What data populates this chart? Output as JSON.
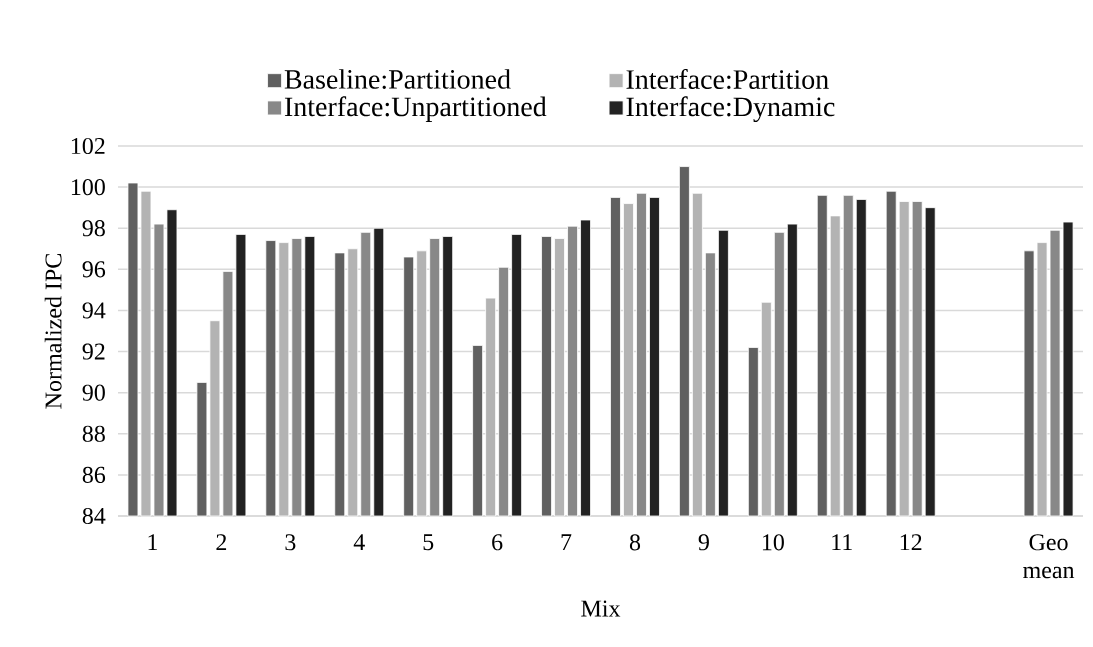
{
  "chart_data": {
    "type": "bar",
    "xlabel": "Mix",
    "ylabel": "Normalized IPC",
    "categories": [
      "1",
      "2",
      "3",
      "4",
      "5",
      "6",
      "7",
      "8",
      "9",
      "10",
      "11",
      "12",
      null,
      "Geo mean"
    ],
    "series": [
      {
        "name": "Baseline:Partitioned",
        "color": "#606060",
        "values": [
          100.2,
          90.5,
          97.4,
          96.8,
          96.6,
          92.3,
          97.6,
          99.5,
          101.0,
          92.2,
          99.6,
          99.8,
          null,
          96.9
        ]
      },
      {
        "name": "Interface:Partition",
        "color": "#b3b3b3",
        "values": [
          99.8,
          93.5,
          97.3,
          97.0,
          96.9,
          94.6,
          97.5,
          99.2,
          99.7,
          94.4,
          98.6,
          99.3,
          null,
          97.3
        ]
      },
      {
        "name": "Interface:Unpartitioned",
        "color": "#888888",
        "values": [
          98.2,
          95.9,
          97.5,
          97.8,
          97.5,
          96.1,
          98.1,
          99.7,
          96.8,
          97.8,
          99.6,
          99.3,
          null,
          97.9
        ]
      },
      {
        "name": "Interface:Dynamic",
        "color": "#222222",
        "values": [
          98.9,
          97.7,
          97.6,
          98.0,
          97.6,
          97.7,
          98.4,
          99.5,
          97.9,
          98.2,
          99.4,
          99.0,
          null,
          98.3
        ]
      }
    ],
    "ylim": [
      84,
      102
    ],
    "yticks": [
      84,
      86,
      88,
      90,
      92,
      94,
      96,
      98,
      100,
      102
    ],
    "grid": "y",
    "legend": "top"
  }
}
